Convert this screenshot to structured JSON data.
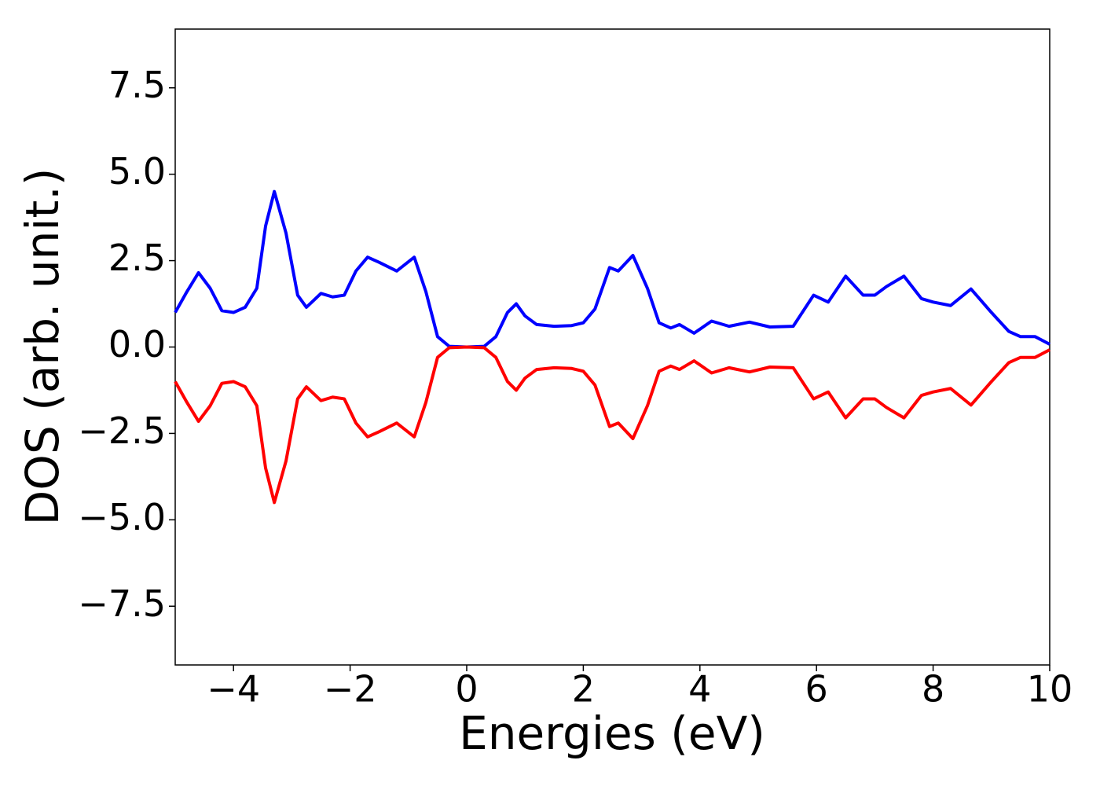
{
  "chart_data": {
    "type": "line",
    "xlabel": "Energies (eV)",
    "ylabel": "DOS (arb. unit.)",
    "x": [
      -5,
      -4.8,
      -4.6,
      -4.4,
      -4.2,
      -4,
      -3.8,
      -3.6,
      -3.45,
      -3.3,
      -3.1,
      -2.9,
      -2.75,
      -2.5,
      -2.3,
      -2.1,
      -1.9,
      -1.7,
      -1.5,
      -1.2,
      -0.9,
      -0.7,
      -0.5,
      -0.3,
      0,
      0.3,
      0.5,
      0.7,
      0.85,
      1,
      1.2,
      1.5,
      1.8,
      2,
      2.2,
      2.45,
      2.6,
      2.85,
      3.1,
      3.3,
      3.5,
      3.65,
      3.9,
      4.2,
      4.5,
      4.85,
      5.2,
      5.6,
      5.95,
      6.2,
      6.5,
      6.8,
      7,
      7.2,
      7.5,
      7.8,
      8,
      8.3,
      8.65,
      9,
      9.3,
      9.5,
      9.75,
      10
    ],
    "series": [
      {
        "color": "#0000ff",
        "values": [
          1.0,
          1.6,
          2.15,
          1.7,
          1.05,
          1.0,
          1.15,
          1.7,
          3.5,
          4.5,
          3.3,
          1.5,
          1.15,
          1.55,
          1.45,
          1.5,
          2.2,
          2.6,
          2.45,
          2.2,
          2.6,
          1.6,
          0.3,
          0.02,
          0,
          0.02,
          0.3,
          1.0,
          1.25,
          0.9,
          0.65,
          0.6,
          0.62,
          0.7,
          1.1,
          2.3,
          2.2,
          2.65,
          1.7,
          0.7,
          0.55,
          0.65,
          0.4,
          0.75,
          0.6,
          0.72,
          0.58,
          0.6,
          1.5,
          1.3,
          2.05,
          1.5,
          1.5,
          1.75,
          2.05,
          1.4,
          1.3,
          1.2,
          1.68,
          1.0,
          0.45,
          0.3,
          0.3,
          0.08
        ]
      },
      {
        "color": "#ff0000",
        "values": [
          -1.0,
          -1.6,
          -2.15,
          -1.7,
          -1.05,
          -1.0,
          -1.15,
          -1.7,
          -3.5,
          -4.5,
          -3.3,
          -1.5,
          -1.15,
          -1.55,
          -1.45,
          -1.5,
          -2.2,
          -2.6,
          -2.45,
          -2.2,
          -2.6,
          -1.6,
          -0.3,
          -0.02,
          0,
          -0.02,
          -0.3,
          -1.0,
          -1.25,
          -0.9,
          -0.65,
          -0.6,
          -0.62,
          -0.7,
          -1.1,
          -2.3,
          -2.2,
          -2.65,
          -1.7,
          -0.7,
          -0.55,
          -0.65,
          -0.4,
          -0.75,
          -0.6,
          -0.72,
          -0.58,
          -0.6,
          -1.5,
          -1.3,
          -2.05,
          -1.5,
          -1.5,
          -1.75,
          -2.05,
          -1.4,
          -1.3,
          -1.2,
          -1.68,
          -1.0,
          -0.45,
          -0.3,
          -0.3,
          -0.08
        ]
      }
    ],
    "xlim": [
      -5,
      10
    ],
    "ylim": [
      -9.2,
      9.2
    ],
    "xticks": [
      {
        "value": -4,
        "label": "−4"
      },
      {
        "value": -2,
        "label": "−2"
      },
      0,
      2,
      4,
      6,
      8,
      10
    ],
    "yticks": [
      {
        "value": -7.5,
        "label": "−7.5"
      },
      {
        "value": -5,
        "label": "−5.0"
      },
      {
        "value": -2.5,
        "label": "−2.5"
      },
      {
        "value": 0,
        "label": "0.0"
      },
      2.5,
      {
        "value": 5,
        "label": "5.0"
      },
      7.5
    ],
    "grid": false
  }
}
